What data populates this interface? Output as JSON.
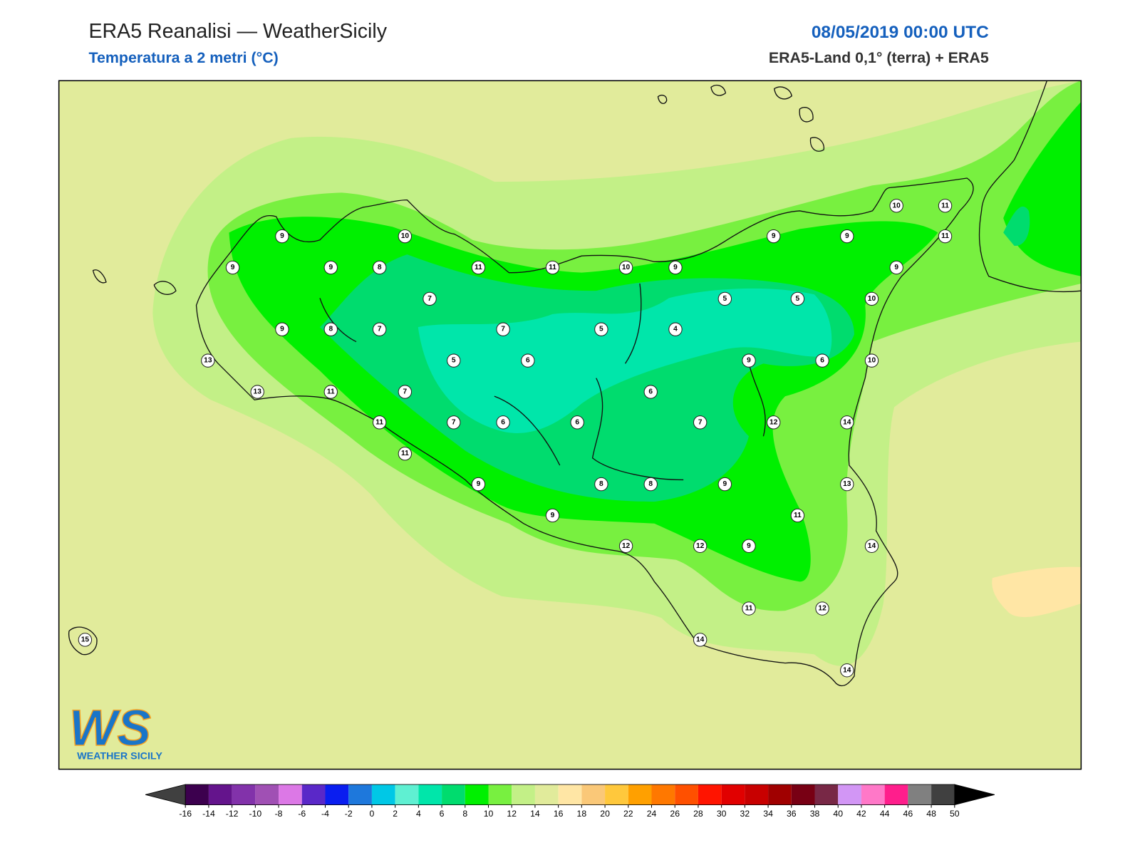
{
  "header": {
    "title": "ERA5 Reanalisi — WeatherSicily",
    "subtitle": "Temperatura a 2 metri (°C)",
    "date": "08/05/2019 00:00 UTC",
    "source": "ERA5-Land 0,1° (terra) + ERA5"
  },
  "logo": {
    "mark": "WS",
    "name": "WEATHER SICILY"
  },
  "stations": [
    9,
    10,
    9,
    9,
    8,
    11,
    11,
    10,
    9,
    9,
    9,
    10,
    11,
    11,
    9,
    7,
    5,
    5,
    10,
    9,
    8,
    7,
    7,
    5,
    4,
    13,
    5,
    6,
    9,
    6,
    10,
    13,
    11,
    7,
    6,
    11,
    7,
    6,
    6,
    7,
    12,
    14,
    11,
    9,
    8,
    8,
    9,
    13,
    11,
    9,
    12,
    12,
    9,
    14,
    11,
    12,
    14,
    14,
    15
  ],
  "colorbar": {
    "ticks": [
      -16,
      -14,
      -12,
      -10,
      -8,
      -6,
      -4,
      -2,
      0,
      2,
      4,
      6,
      8,
      10,
      12,
      14,
      16,
      18,
      20,
      22,
      24,
      26,
      28,
      30,
      32,
      34,
      36,
      38,
      40,
      42,
      44,
      46,
      48,
      50
    ],
    "colors": [
      "#3c004e",
      "#64148c",
      "#8232aa",
      "#a050b4",
      "#dc78e6",
      "#5a28c8",
      "#0a1ef0",
      "#1e78dc",
      "#00c8e6",
      "#5ff0d2",
      "#00e6aa",
      "#00dc6e",
      "#00f000",
      "#78f040",
      "#c3f087",
      "#e1eb9b",
      "#ffe6a5",
      "#fac878",
      "#ffc83c",
      "#ffa000",
      "#ff7800",
      "#ff5000",
      "#ff1400",
      "#e10000",
      "#c80000",
      "#a00000",
      "#780014",
      "#782846",
      "#d296f5",
      "#ff78c8",
      "#ff1e8c",
      "#808080",
      "#404040"
    ],
    "under_color": "#404040",
    "over_color": "#000000"
  }
}
